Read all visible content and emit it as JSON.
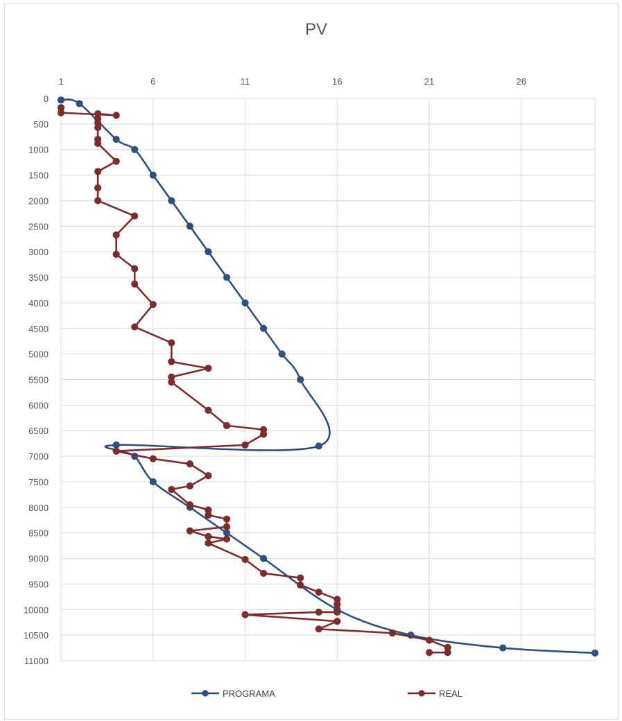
{
  "chart_data": {
    "type": "line",
    "title": "PV",
    "xlabel": "",
    "ylabel": "",
    "xlim": [
      1,
      30
    ],
    "ylim": [
      0,
      11000
    ],
    "y_reversed": true,
    "x_axis_position": "top",
    "x_ticks": [
      1,
      6,
      11,
      16,
      21,
      26
    ],
    "y_ticks": [
      0,
      500,
      1000,
      1500,
      2000,
      2500,
      3000,
      3500,
      4000,
      4500,
      5000,
      5500,
      6000,
      6500,
      7000,
      7500,
      8000,
      8500,
      9000,
      9500,
      10000,
      10500,
      11000
    ],
    "grid": true,
    "legend_position": "bottom",
    "series": [
      {
        "name": "PROGRAMA",
        "color": "#2F4F7F",
        "smooth": true,
        "points": [
          [
            1,
            30
          ],
          [
            2,
            100
          ],
          [
            4,
            800
          ],
          [
            5,
            1000
          ],
          [
            6,
            1500
          ],
          [
            7,
            2000
          ],
          [
            8,
            2500
          ],
          [
            9,
            3000
          ],
          [
            10,
            3500
          ],
          [
            11,
            4000
          ],
          [
            12,
            4500
          ],
          [
            13,
            5000
          ],
          [
            14,
            5500
          ],
          [
            15,
            6800
          ],
          [
            4,
            6780
          ],
          [
            5,
            7000
          ],
          [
            6,
            7500
          ],
          [
            8,
            8000
          ],
          [
            10,
            8500
          ],
          [
            12,
            9000
          ],
          [
            16,
            10000
          ],
          [
            20,
            10500
          ],
          [
            25,
            10750
          ],
          [
            30,
            10850
          ]
        ]
      },
      {
        "name": "REAL",
        "color": "#7B2C2C",
        "smooth": false,
        "points": [
          [
            1,
            180
          ],
          [
            1,
            280
          ],
          [
            4,
            330
          ],
          [
            3,
            300
          ],
          [
            3,
            400
          ],
          [
            3,
            480
          ],
          [
            3,
            570
          ],
          [
            3,
            800
          ],
          [
            3,
            880
          ],
          [
            4,
            1230
          ],
          [
            3,
            1430
          ],
          [
            3,
            1750
          ],
          [
            3,
            2000
          ],
          [
            5,
            2300
          ],
          [
            4,
            2670
          ],
          [
            4,
            3050
          ],
          [
            5,
            3330
          ],
          [
            5,
            3630
          ],
          [
            6,
            4030
          ],
          [
            5,
            4470
          ],
          [
            7,
            4780
          ],
          [
            7,
            5150
          ],
          [
            9,
            5280
          ],
          [
            7,
            5450
          ],
          [
            7,
            5550
          ],
          [
            9,
            6100
          ],
          [
            10,
            6400
          ],
          [
            12,
            6480
          ],
          [
            12,
            6570
          ],
          [
            11,
            6780
          ],
          [
            4,
            6900
          ],
          [
            6,
            7050
          ],
          [
            8,
            7150
          ],
          [
            9,
            7380
          ],
          [
            8,
            7580
          ],
          [
            7,
            7650
          ],
          [
            8,
            7950
          ],
          [
            9,
            8050
          ],
          [
            9,
            8150
          ],
          [
            10,
            8230
          ],
          [
            10,
            8380
          ],
          [
            8,
            8460
          ],
          [
            9,
            8570
          ],
          [
            10,
            8620
          ],
          [
            9,
            8700
          ],
          [
            11,
            9020
          ],
          [
            12,
            9290
          ],
          [
            14,
            9380
          ],
          [
            14,
            9520
          ],
          [
            15,
            9660
          ],
          [
            16,
            9800
          ],
          [
            16,
            9900
          ],
          [
            16,
            10050
          ],
          [
            15,
            10050
          ],
          [
            11,
            10100
          ],
          [
            16,
            10230
          ],
          [
            15,
            10380
          ],
          [
            19,
            10460
          ],
          [
            21,
            10600
          ],
          [
            22,
            10740
          ],
          [
            22,
            10840
          ],
          [
            21,
            10840
          ]
        ]
      }
    ]
  }
}
